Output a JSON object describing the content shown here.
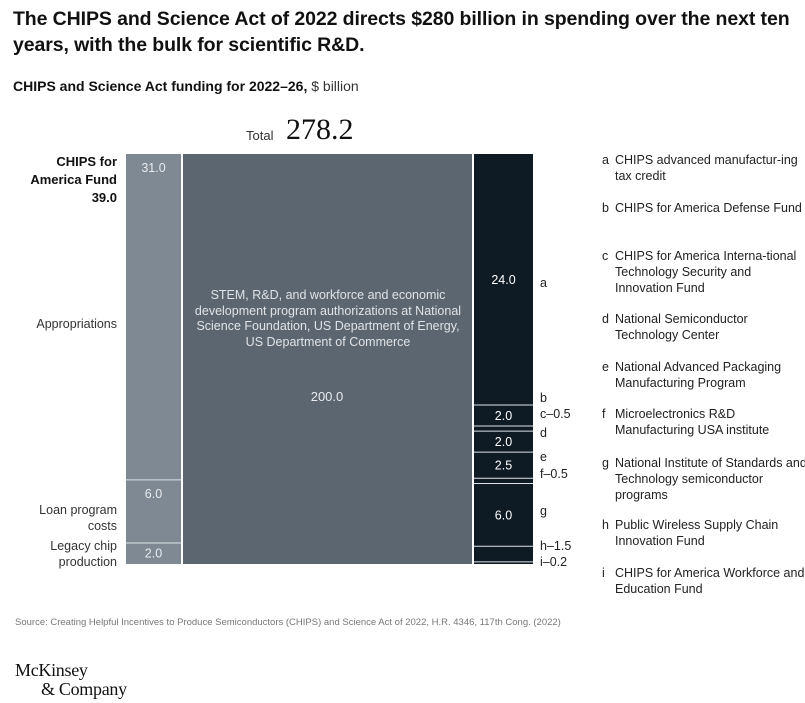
{
  "title": "The CHIPS and Science Act of 2022 directs $280 billion in spending over the next ten years, with the bulk for scientific R&D.",
  "subtitle_bold": "CHIPS and Science Act funding for 2022–26,",
  "subtitle_unit": "$ billion",
  "total_label": "Total",
  "total_value": "278.2",
  "fund_name": "CHIPS for America Fund",
  "fund_total": "39.0",
  "row_labels": {
    "appropriations": "Appropriations",
    "loan": "Loan program costs",
    "legacy": "Legacy chip production"
  },
  "center_text": "STEM, R&D, and workforce and economic development program authorizations at National Science Foundation, US Department of Energy, US Department of Commerce",
  "legend": [
    {
      "key": "a",
      "text": "CHIPS advanced manufactur-ing tax credit"
    },
    {
      "key": "b",
      "text": "CHIPS for America Defense Fund"
    },
    {
      "key": "c",
      "text": "CHIPS for America Interna-tional Technology Security and Innovation Fund"
    },
    {
      "key": "d",
      "text": "National Semiconductor Technology Center"
    },
    {
      "key": "e",
      "text": "National Advanced Packaging Manufacturing Program"
    },
    {
      "key": "f",
      "text": "Microelectronics R&D Manufacturing USA institute"
    },
    {
      "key": "g",
      "text": "National Institute of Standards and Technology semiconductor programs"
    },
    {
      "key": "h",
      "text": "Public Wireless Supply Chain Innovation Fund"
    },
    {
      "key": "i",
      "text": "CHIPS for America Workforce and Education Fund"
    }
  ],
  "source": "Source: Creating Helpful Incentives to Produce Semiconductors (CHIPS) and Science Act of 2022, H.R. 4346, 117th Cong. (2022)",
  "logo_line1": "McKinsey",
  "logo_line2": "& Company",
  "colors": {
    "col1": "#7e8994",
    "col2": "#5c6670",
    "col3": "#0e1a24",
    "divider": "#dfe3e7"
  },
  "chart_data": {
    "type": "mekko",
    "total": 278.2,
    "columns": [
      {
        "name": "CHIPS for America Fund",
        "total": 39.0,
        "segments": [
          {
            "label": "Appropriations",
            "value": 31.0,
            "display": "31.0"
          },
          {
            "label": "Loan program costs",
            "value": 6.0,
            "display": "6.0"
          },
          {
            "label": "Legacy chip production",
            "value": 2.0,
            "display": "2.0"
          }
        ]
      },
      {
        "name": "",
        "total": 200.0,
        "segments": [
          {
            "label": "",
            "value": 200.0,
            "display": "200.0"
          }
        ]
      },
      {
        "name": "",
        "total": 39.2,
        "segments": [
          {
            "key": "a",
            "value": 24.0,
            "display": "24.0"
          },
          {
            "key": "b",
            "value": 2.0,
            "display": "2.0"
          },
          {
            "key": "c",
            "value": 0.5,
            "display": "0.5"
          },
          {
            "key": "d",
            "value": 2.0,
            "display": "2.0"
          },
          {
            "key": "e",
            "value": 2.5,
            "display": "2.5"
          },
          {
            "key": "f",
            "value": 0.5,
            "display": "0.5"
          },
          {
            "key": "g",
            "value": 6.0,
            "display": "6.0"
          },
          {
            "key": "h",
            "value": 1.5,
            "display": "1.5"
          },
          {
            "key": "i",
            "value": 0.2,
            "display": "0.2"
          }
        ]
      }
    ]
  }
}
